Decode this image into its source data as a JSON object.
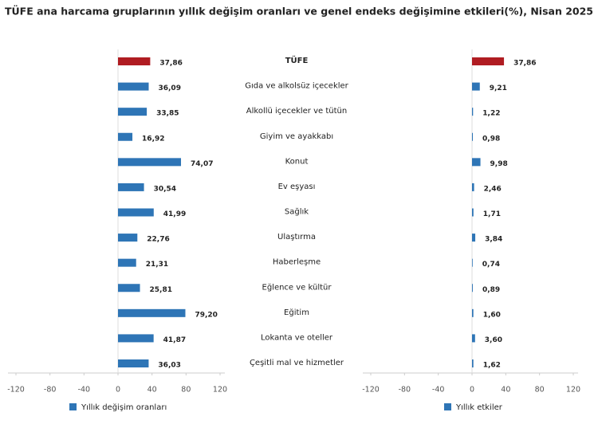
{
  "chart_data": [
    {
      "type": "bar",
      "orientation": "horizontal",
      "title": "TÜFE ana harcama gruplarının yıllık değişim oranları ve genel endeks değişimine etkileri(%), Nisan 2025",
      "categories": [
        "TÜFE",
        "Gıda ve alkolsüz içecekler",
        "Alkollü içecekler ve tütün",
        "Giyim ve ayakkabı",
        "Konut",
        "Ev eşyası",
        "Sağlık",
        "Ulaştırma",
        "Haberleşme",
        "Eğlence ve kültür",
        "Eğitim",
        "Lokanta ve oteller",
        "Çeşitli mal ve hizmetler"
      ],
      "series": [
        {
          "name": "Yıllık değişim oranları",
          "color": "#2e75b6",
          "values": [
            37.86,
            36.09,
            33.85,
            16.92,
            74.07,
            30.54,
            41.99,
            22.76,
            21.31,
            25.81,
            79.2,
            41.87,
            36.03
          ],
          "value_labels": [
            "37,86",
            "36,09",
            "33,85",
            "16,92",
            "74,07",
            "30,54",
            "41,99",
            "22,76",
            "21,31",
            "25,81",
            "79,20",
            "41,87",
            "36,03"
          ],
          "colors": [
            "#b01c22",
            "#2e75b6",
            "#2e75b6",
            "#2e75b6",
            "#2e75b6",
            "#2e75b6",
            "#2e75b6",
            "#2e75b6",
            "#2e75b6",
            "#2e75b6",
            "#2e75b6",
            "#2e75b6",
            "#2e75b6"
          ]
        }
      ],
      "xlim": [
        -120,
        120
      ],
      "xticks": [
        -120,
        -80,
        -40,
        0,
        40,
        80,
        120
      ]
    },
    {
      "type": "bar",
      "orientation": "horizontal",
      "series": [
        {
          "name": "Yıllık etkiler",
          "color": "#2e75b6",
          "values": [
            37.86,
            9.21,
            1.22,
            0.98,
            9.98,
            2.46,
            1.71,
            3.84,
            0.74,
            0.89,
            1.6,
            3.6,
            1.62
          ],
          "value_labels": [
            "37,86",
            "9,21",
            "1,22",
            "0,98",
            "9,98",
            "2,46",
            "1,71",
            "3,84",
            "0,74",
            "0,89",
            "1,60",
            "3,60",
            "1,62"
          ],
          "colors": [
            "#b01c22",
            "#2e75b6",
            "#2e75b6",
            "#2e75b6",
            "#2e75b6",
            "#2e75b6",
            "#2e75b6",
            "#2e75b6",
            "#2e75b6",
            "#2e75b6",
            "#2e75b6",
            "#2e75b6",
            "#2e75b6"
          ]
        }
      ],
      "xlim": [
        -120,
        120
      ],
      "xticks": [
        -120,
        -80,
        -40,
        0,
        40,
        80,
        120
      ]
    }
  ]
}
